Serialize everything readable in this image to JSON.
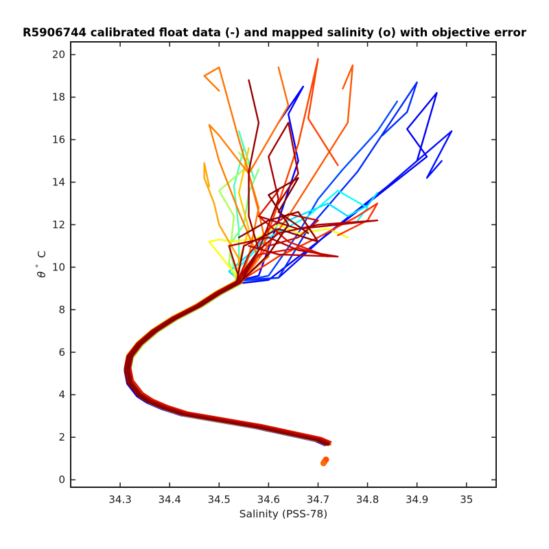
{
  "chart_data": {
    "type": "line",
    "title": "R5906744 calibrated float data (-) and mapped salinity (o) with objective error",
    "xlabel": "Salinity (PSS-78)",
    "ylabel_symbol": "θ",
    "ylabel_degree": "°",
    "ylabel_unit": "C",
    "xlim": [
      34.2,
      35.06
    ],
    "ylim": [
      -0.35,
      20.6
    ],
    "xticks": [
      34.3,
      34.4,
      34.5,
      34.6,
      34.7,
      34.8,
      34.9,
      35
    ],
    "xtick_labels": [
      "34.3",
      "34.4",
      "34.5",
      "34.6",
      "34.7",
      "34.8",
      "34.9",
      "35"
    ],
    "yticks": [
      0,
      2,
      4,
      6,
      8,
      10,
      12,
      14,
      16,
      18,
      20
    ],
    "ytick_labels": [
      "0",
      "2",
      "4",
      "6",
      "8",
      "10",
      "12",
      "14",
      "16",
      "18",
      "20"
    ],
    "grid": false,
    "colormap": "jet",
    "colormap_stops": [
      "#00008f",
      "#0000ff",
      "#00a0ff",
      "#00ffff",
      "#80ff80",
      "#ffff00",
      "#ffa000",
      "#ff3000",
      "#c00000",
      "#800000"
    ],
    "common_curve": {
      "salinity": [
        34.72,
        34.7,
        34.66,
        34.62,
        34.58,
        34.53,
        34.48,
        34.43,
        34.39,
        34.36,
        34.34,
        34.32,
        34.315,
        34.32,
        34.34,
        34.37,
        34.41,
        34.46,
        34.5,
        34.54
      ],
      "theta": [
        1.7,
        1.9,
        2.1,
        2.3,
        2.5,
        2.7,
        2.9,
        3.1,
        3.4,
        3.7,
        4.0,
        4.6,
        5.2,
        5.8,
        6.4,
        7.0,
        7.6,
        8.2,
        8.8,
        9.3
      ]
    },
    "series": [
      {
        "color_index": 0.1,
        "salinity": [
          34.6,
          34.7,
          34.8,
          34.92,
          34.88,
          34.94,
          34.9
        ],
        "theta": [
          9.4,
          11.2,
          13.0,
          15.2,
          16.5,
          18.2,
          15.0
        ]
      },
      {
        "color_index": 0.12,
        "salinity": [
          34.62,
          34.72,
          34.84,
          34.97,
          34.92,
          34.95
        ],
        "theta": [
          9.5,
          11.6,
          13.8,
          16.4,
          14.2,
          15.0
        ]
      },
      {
        "color_index": 0.14,
        "salinity": [
          34.62,
          34.68,
          34.78,
          34.9,
          34.88,
          34.83
        ],
        "theta": [
          9.5,
          11.8,
          14.5,
          18.7,
          17.3,
          16.2
        ]
      },
      {
        "color_index": 0.11,
        "salinity": [
          34.58,
          34.62,
          34.66,
          34.64,
          34.67,
          34.62
        ],
        "theta": [
          9.6,
          12.2,
          15.0,
          17.2,
          18.5,
          16.8
        ]
      },
      {
        "color_index": 0.16,
        "salinity": [
          34.6,
          34.66,
          34.7,
          34.75,
          34.82,
          34.86
        ],
        "theta": [
          9.6,
          11.6,
          13.2,
          14.6,
          16.4,
          17.8
        ]
      },
      {
        "color_index": 0.3,
        "salinity": [
          34.52,
          34.56,
          34.62,
          34.72,
          34.76,
          34.8,
          34.82
        ],
        "theta": [
          9.8,
          10.6,
          12.0,
          13.0,
          12.4,
          12.9,
          13.5
        ]
      },
      {
        "color_index": 0.34,
        "salinity": [
          34.54,
          34.6,
          34.68,
          34.74,
          34.8,
          34.78
        ],
        "theta": [
          10.0,
          11.4,
          12.4,
          13.6,
          12.8,
          12.2
        ]
      },
      {
        "color_index": 0.4,
        "salinity": [
          34.54,
          34.54,
          34.53,
          34.55,
          34.54,
          34.57
        ],
        "theta": [
          10.0,
          11.8,
          13.8,
          15.6,
          16.4,
          14.2
        ]
      },
      {
        "color_index": 0.44,
        "salinity": [
          34.53,
          34.52,
          34.55,
          34.56,
          34.58
        ],
        "theta": [
          10.0,
          11.0,
          12.0,
          13.5,
          14.6
        ]
      },
      {
        "color_index": 0.48,
        "salinity": [
          34.52,
          34.53,
          34.5,
          34.56,
          34.54
        ],
        "theta": [
          10.2,
          12.4,
          13.6,
          14.8,
          15.4
        ]
      },
      {
        "color_index": 0.55,
        "salinity": [
          34.48,
          34.5,
          34.53,
          34.58,
          34.62,
          34.66,
          34.72,
          34.76
        ],
        "theta": [
          11.2,
          11.3,
          11.2,
          11.4,
          12.0,
          11.6,
          11.8,
          11.4
        ]
      },
      {
        "color_index": 0.62,
        "salinity": [
          34.54,
          34.56,
          34.54,
          34.56
        ],
        "theta": [
          10.2,
          11.8,
          13.5,
          15.6
        ]
      },
      {
        "color_index": 0.66,
        "salinity": [
          34.54,
          34.5,
          34.49,
          34.47,
          34.47,
          34.48
        ],
        "theta": [
          10.4,
          12.0,
          13.0,
          14.2,
          14.9,
          13.8
        ]
      },
      {
        "color_index": 0.74,
        "salinity": [
          34.58,
          34.64,
          34.7,
          34.76,
          34.77,
          34.75
        ],
        "theta": [
          10.4,
          12.4,
          14.6,
          16.8,
          19.5,
          18.4
        ]
      },
      {
        "color_index": 0.76,
        "salinity": [
          34.58,
          34.62,
          34.66,
          34.7,
          34.68,
          34.74
        ],
        "theta": [
          10.4,
          13.0,
          15.8,
          19.8,
          17.0,
          14.8
        ]
      },
      {
        "color_index": 0.72,
        "salinity": [
          34.6,
          34.58,
          34.56,
          34.6,
          34.64,
          34.62
        ],
        "theta": [
          10.5,
          12.6,
          14.4,
          16.0,
          17.6,
          19.4
        ]
      },
      {
        "color_index": 0.7,
        "salinity": [
          34.58,
          34.54,
          34.5,
          34.48,
          34.5,
          34.56
        ],
        "theta": [
          10.4,
          12.6,
          15.0,
          16.7,
          16.2,
          14.4
        ]
      },
      {
        "color_index": 0.78,
        "salinity": [
          34.62,
          34.7,
          34.78,
          34.82,
          34.8,
          34.74
        ],
        "theta": [
          10.5,
          11.4,
          12.4,
          13.0,
          12.2,
          11.5
        ]
      },
      {
        "color_index": 0.71,
        "salinity": [
          34.56,
          34.58,
          34.54,
          34.5,
          34.47,
          34.5
        ],
        "theta": [
          10.5,
          12.8,
          16.0,
          19.4,
          19.0,
          18.3
        ]
      },
      {
        "color_index": 0.84,
        "salinity": [
          34.58,
          34.66,
          34.72,
          34.64,
          34.58,
          34.62
        ],
        "theta": [
          10.6,
          10.9,
          10.5,
          11.2,
          12.4,
          13.6
        ]
      },
      {
        "color_index": 0.86,
        "salinity": [
          34.56,
          34.6,
          34.64,
          34.7,
          34.66,
          34.6
        ],
        "theta": [
          10.6,
          11.8,
          12.5,
          12.2,
          11.4,
          11.0
        ]
      },
      {
        "color_index": 0.9,
        "salinity": [
          34.52,
          34.6,
          34.66,
          34.74,
          34.62,
          34.56
        ],
        "theta": [
          11.0,
          11.4,
          10.8,
          10.5,
          10.6,
          11.0
        ]
      },
      {
        "color_index": 0.92,
        "salinity": [
          34.58,
          34.62,
          34.7,
          34.82,
          34.66,
          34.58
        ],
        "theta": [
          10.8,
          11.6,
          12.0,
          12.2,
          11.8,
          12.4
        ]
      },
      {
        "color_index": 0.94,
        "salinity": [
          34.58,
          34.62,
          34.6,
          34.64,
          34.66,
          34.62
        ],
        "theta": [
          10.8,
          13.2,
          15.2,
          16.8,
          14.4,
          13.0
        ]
      },
      {
        "color_index": 0.96,
        "salinity": [
          34.58,
          34.56,
          34.56,
          34.58,
          34.56
        ],
        "theta": [
          10.8,
          12.4,
          14.5,
          16.8,
          18.8
        ]
      },
      {
        "color_index": 0.98,
        "salinity": [
          34.55,
          34.62,
          34.7,
          34.66,
          34.6,
          34.54
        ],
        "theta": [
          11.0,
          11.8,
          11.2,
          12.6,
          12.2,
          11.4
        ]
      },
      {
        "color_index": 1.0,
        "salinity": [
          34.6,
          34.64,
          34.6,
          34.66,
          34.62,
          34.68
        ],
        "theta": [
          10.6,
          12.0,
          13.4,
          14.2,
          12.6,
          11.6
        ]
      }
    ],
    "mapped_points": [
      {
        "salinity": 34.713,
        "theta": 0.85,
        "color_index": 0.75
      },
      {
        "salinity": 34.716,
        "theta": 0.95,
        "color_index": 0.75
      },
      {
        "salinity": 34.711,
        "theta": 0.78,
        "color_index": 0.72
      }
    ]
  }
}
